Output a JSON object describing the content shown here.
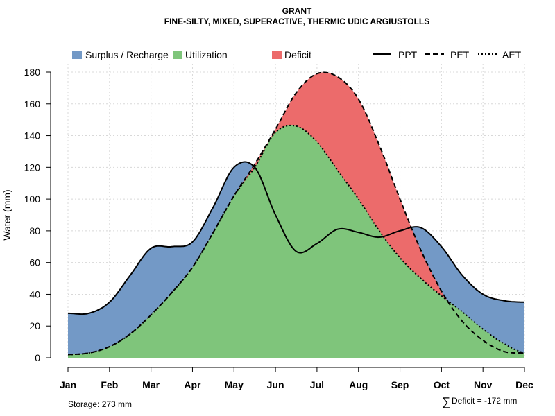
{
  "chart_data": {
    "type": "area",
    "title": "GRANT",
    "subtitle": "FINE-SILTY, MIXED, SUPERACTIVE, THERMIC UDIC ARGIUSTOLLS",
    "xlabel": "",
    "ylabel": "Water (mm)",
    "ylim": [
      0,
      180
    ],
    "yticks": [
      0,
      20,
      40,
      60,
      80,
      100,
      120,
      140,
      160,
      180
    ],
    "categories": [
      "Jan",
      "Feb",
      "Mar",
      "Apr",
      "May",
      "Jun",
      "Jul",
      "Aug",
      "Sep",
      "Oct",
      "Nov",
      "Dec"
    ],
    "x": [
      1,
      1.5,
      2,
      2.5,
      3,
      3.5,
      4,
      4.5,
      5,
      5.5,
      6,
      6.5,
      7,
      7.5,
      8,
      8.5,
      9,
      9.5,
      10,
      10.5,
      11,
      11.5,
      12
    ],
    "series": [
      {
        "name": "PPT",
        "style": "solid",
        "values": [
          28,
          28,
          35,
          52,
          69,
          70,
          73,
          95,
          120,
          120,
          90,
          67,
          72,
          81,
          79,
          76,
          80,
          82,
          70,
          52,
          40,
          36,
          35
        ]
      },
      {
        "name": "PET",
        "style": "dashed",
        "values": [
          2,
          3,
          7,
          15,
          27,
          41,
          57,
          79,
          102,
          122,
          144,
          167,
          179,
          177,
          163,
          134,
          100,
          68,
          42,
          23,
          11,
          4,
          3
        ]
      },
      {
        "name": "AET",
        "style": "dotted",
        "values": [
          2,
          3,
          7,
          15,
          27,
          41,
          57,
          79,
          102,
          120,
          142,
          146,
          136,
          118,
          100,
          80,
          63,
          50,
          39,
          29,
          18,
          9,
          3
        ]
      }
    ],
    "areas": [
      {
        "name": "Surplus / Recharge",
        "color": "#7399c6"
      },
      {
        "name": "Utilization",
        "color": "#7fc57b"
      },
      {
        "name": "Deficit",
        "color": "#ec6b6b"
      }
    ],
    "legend": {
      "position": "top",
      "areas": [
        "Surplus / Recharge",
        "Utilization",
        "Deficit"
      ],
      "lines": [
        "PPT",
        "PET",
        "AET"
      ]
    },
    "annotations": {
      "storage": "Storage: 273 mm",
      "deficit_symbol": "∑",
      "deficit": "Deficit = -172 mm"
    },
    "grid": true
  }
}
